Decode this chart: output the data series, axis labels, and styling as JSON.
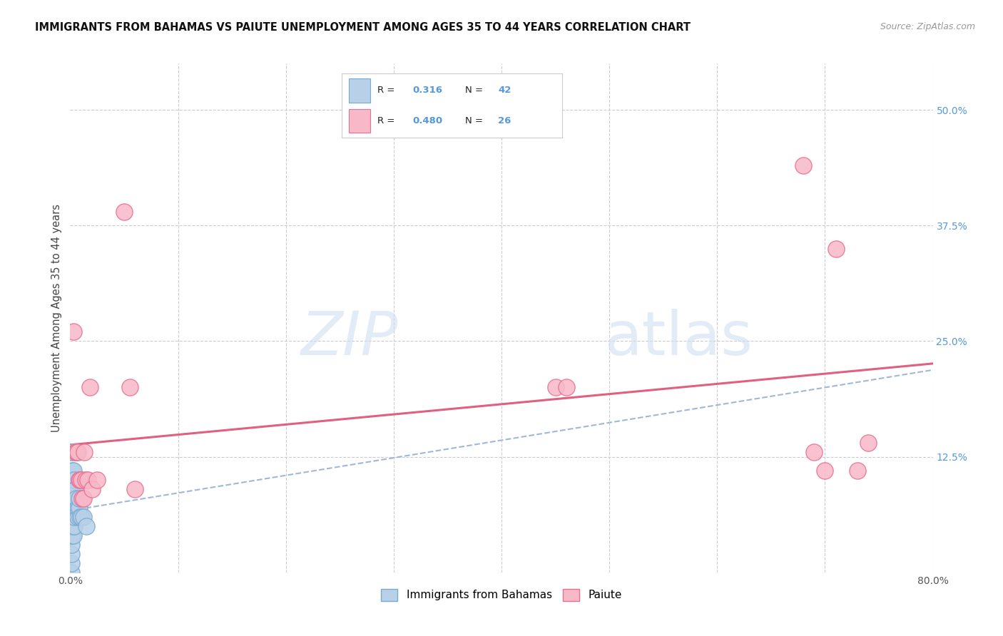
{
  "title": "IMMIGRANTS FROM BAHAMAS VS PAIUTE UNEMPLOYMENT AMONG AGES 35 TO 44 YEARS CORRELATION CHART",
  "source": "Source: ZipAtlas.com",
  "ylabel": "Unemployment Among Ages 35 to 44 years",
  "legend_label1": "Immigrants from Bahamas",
  "legend_label2": "Paiute",
  "R1": "0.316",
  "N1": "42",
  "R2": "0.480",
  "N2": "26",
  "xmin": 0.0,
  "xmax": 0.8,
  "ymin": 0.0,
  "ymax": 0.55,
  "xticks": [
    0.0,
    0.1,
    0.2,
    0.3,
    0.4,
    0.5,
    0.6,
    0.7,
    0.8
  ],
  "ytick_vals_right": [
    0.125,
    0.25,
    0.375,
    0.5
  ],
  "ytick_labels_right": [
    "12.5%",
    "25.0%",
    "37.5%",
    "50.0%"
  ],
  "color_blue_fill": "#b8d0e8",
  "color_blue_edge": "#7aaad0",
  "color_pink_fill": "#f8b8c8",
  "color_pink_edge": "#e87090",
  "color_pink_line": "#e06080",
  "color_blue_dashed": "#a0b8d8",
  "color_raxis": "#5599dd",
  "blue_points_x": [
    0.001,
    0.001,
    0.001,
    0.001,
    0.001,
    0.001,
    0.001,
    0.001,
    0.001,
    0.001,
    0.001,
    0.001,
    0.002,
    0.002,
    0.002,
    0.002,
    0.002,
    0.002,
    0.002,
    0.002,
    0.003,
    0.003,
    0.003,
    0.003,
    0.003,
    0.004,
    0.004,
    0.004,
    0.004,
    0.005,
    0.005,
    0.005,
    0.006,
    0.006,
    0.007,
    0.007,
    0.008,
    0.008,
    0.009,
    0.01,
    0.012,
    0.015
  ],
  "blue_points_y": [
    0.0,
    0.01,
    0.02,
    0.03,
    0.04,
    0.05,
    0.05,
    0.06,
    0.07,
    0.08,
    0.09,
    0.13,
    0.04,
    0.05,
    0.06,
    0.07,
    0.08,
    0.1,
    0.11,
    0.13,
    0.04,
    0.05,
    0.07,
    0.1,
    0.11,
    0.05,
    0.06,
    0.09,
    0.1,
    0.07,
    0.08,
    0.09,
    0.07,
    0.08,
    0.06,
    0.07,
    0.07,
    0.08,
    0.06,
    0.06,
    0.06,
    0.05
  ],
  "pink_points_x": [
    0.003,
    0.005,
    0.006,
    0.007,
    0.008,
    0.009,
    0.01,
    0.011,
    0.012,
    0.013,
    0.014,
    0.016,
    0.018,
    0.02,
    0.025,
    0.05,
    0.055,
    0.06,
    0.45,
    0.46,
    0.68,
    0.69,
    0.7,
    0.71,
    0.73,
    0.74
  ],
  "pink_points_y": [
    0.26,
    0.13,
    0.13,
    0.13,
    0.1,
    0.1,
    0.1,
    0.08,
    0.08,
    0.13,
    0.1,
    0.1,
    0.2,
    0.09,
    0.1,
    0.39,
    0.2,
    0.09,
    0.2,
    0.2,
    0.44,
    0.13,
    0.11,
    0.35,
    0.11,
    0.14
  ]
}
